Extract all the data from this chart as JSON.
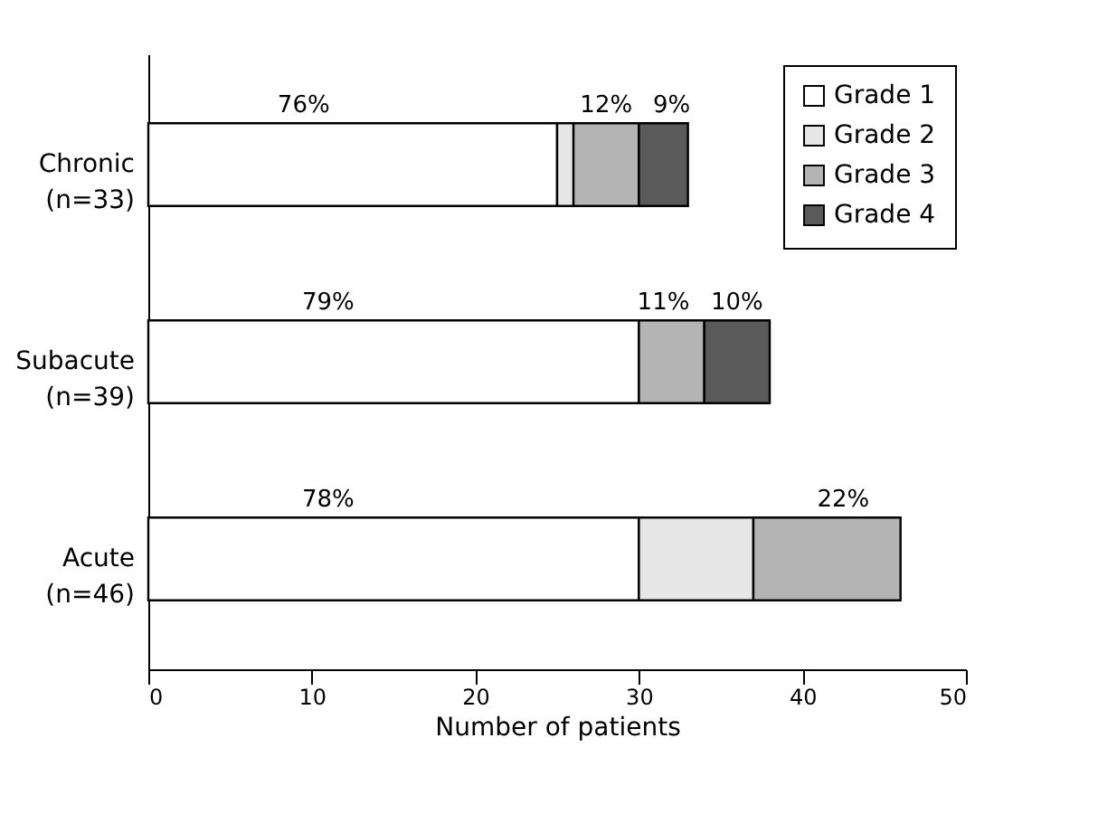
{
  "chart_data": {
    "type": "bar",
    "orientation": "horizontal",
    "stacked": true,
    "xlabel": "Number of patients",
    "categories": [
      "Chronic (n=33)",
      "Subacute (n=39)",
      "Acute (n=46)"
    ],
    "series": [
      {
        "name": "Grade 1",
        "color": "#ffffff",
        "values": [
          25,
          30,
          30
        ]
      },
      {
        "name": "Grade 2",
        "color": "#e6e6e6",
        "values": [
          1,
          null,
          7
        ]
      },
      {
        "name": "Grade 3",
        "color": "#b4b4b4",
        "values": [
          4,
          4,
          9
        ]
      },
      {
        "name": "Grade 4",
        "color": "#5a5a5a",
        "values": [
          3,
          4,
          null
        ]
      }
    ],
    "annotations": [
      "76%",
      "12%",
      "9%",
      "79%",
      "11%",
      "10%",
      "78%",
      "22%"
    ],
    "xlim": [
      0,
      50
    ],
    "xticks": [
      0,
      10,
      20,
      30,
      40,
      50
    ],
    "grid": false,
    "legend": "top right"
  }
}
